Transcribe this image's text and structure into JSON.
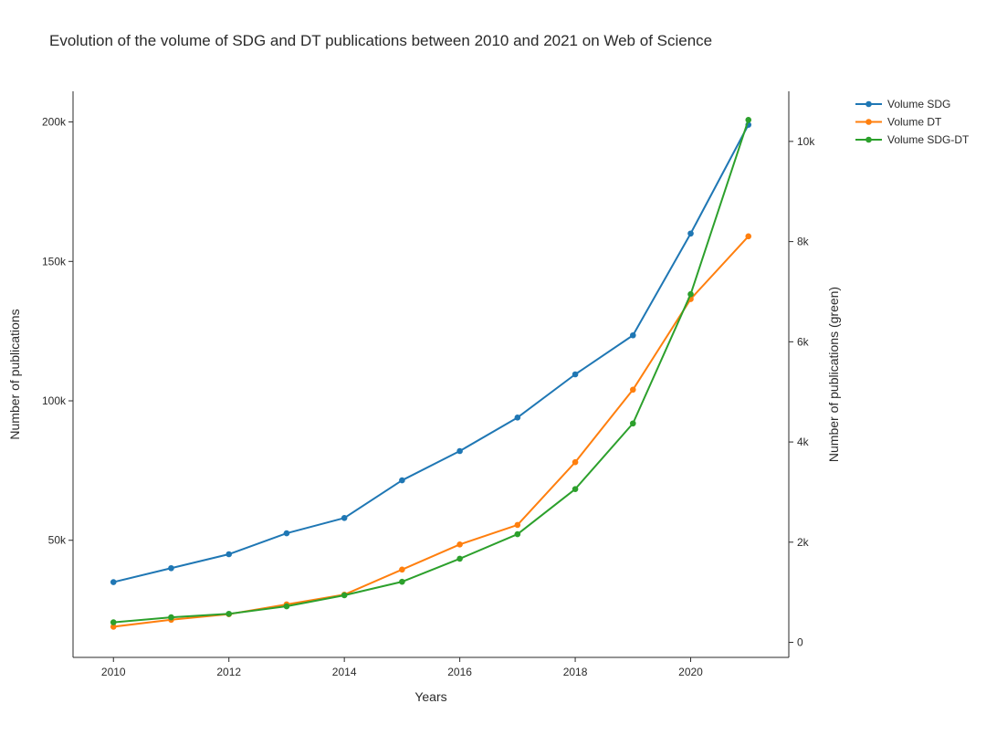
{
  "chart_data": {
    "type": "line",
    "title": "Evolution of the volume of SDG and DT publications between 2010 and 2021 on Web of Science",
    "xlabel": "Years",
    "ylabel": "Number of publications",
    "y2label": "Number of publications (green)",
    "x": [
      2010,
      2011,
      2012,
      2013,
      2014,
      2015,
      2016,
      2017,
      2018,
      2019,
      2020,
      2021
    ],
    "xticks": [
      2010,
      2012,
      2014,
      2016,
      2018,
      2020
    ],
    "xlim": [
      2009.3,
      2021.7
    ],
    "ylim": [
      8000,
      211000
    ],
    "y2lim": [
      -300,
      11000
    ],
    "yticks": [
      {
        "value": 50000,
        "label": "50k"
      },
      {
        "value": 100000,
        "label": "100k"
      },
      {
        "value": 150000,
        "label": "150k"
      },
      {
        "value": 200000,
        "label": "200k"
      }
    ],
    "y2ticks": [
      {
        "value": 0,
        "label": "0"
      },
      {
        "value": 2000,
        "label": "2k"
      },
      {
        "value": 4000,
        "label": "4k"
      },
      {
        "value": 6000,
        "label": "6k"
      },
      {
        "value": 8000,
        "label": "8k"
      },
      {
        "value": 10000,
        "label": "10k"
      }
    ],
    "grid": false,
    "legend_position": "top-right",
    "series": [
      {
        "name": "Volume SDG",
        "axis": "left",
        "color": "#1f77b4",
        "values": [
          35000,
          40000,
          45000,
          52500,
          58000,
          71500,
          82000,
          94000,
          109500,
          123500,
          160000,
          199000
        ]
      },
      {
        "name": "Volume DT",
        "axis": "left",
        "color": "#ff7f0e",
        "values": [
          19000,
          21500,
          23500,
          27000,
          30500,
          39500,
          48500,
          55500,
          78000,
          104000,
          136500,
          159000
        ]
      },
      {
        "name": "Volume SDG-DT",
        "axis": "right",
        "color": "#2ca02c",
        "values": [
          400,
          500,
          570,
          720,
          940,
          1210,
          1670,
          2160,
          3060,
          4370,
          6950,
          10430
        ]
      }
    ]
  }
}
